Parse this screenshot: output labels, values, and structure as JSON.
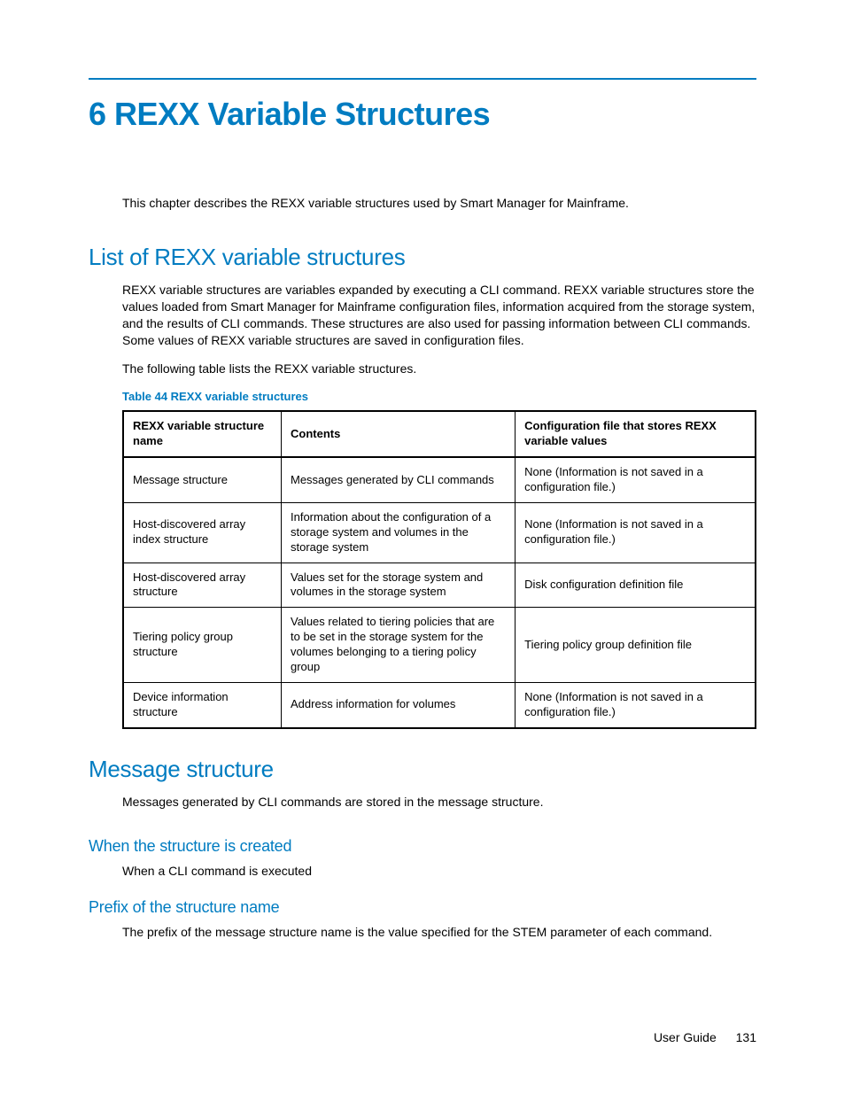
{
  "colors": {
    "accent": "#007cc1",
    "text": "#000000",
    "background": "#ffffff",
    "border": "#000000"
  },
  "chapter": {
    "title": "6 REXX Variable Structures",
    "intro": "This chapter describes the REXX variable structures used by Smart Manager for Mainframe."
  },
  "section_list": {
    "heading": "List of REXX variable structures",
    "para1": "REXX variable structures are variables expanded by executing a CLI command. REXX variable structures store the values loaded from Smart Manager for Mainframe configuration files, information acquired from the storage system, and the results of CLI commands. These structures are also used for passing information between CLI commands. Some values of REXX variable structures are saved in configuration files.",
    "para2": "The following table lists the REXX variable structures.",
    "table_caption": "Table 44 REXX variable structures",
    "table": {
      "columns": [
        "REXX variable structure name",
        "Contents",
        "Configuration file that stores REXX variable values"
      ],
      "rows": [
        [
          "Message structure",
          "Messages generated by CLI commands",
          "None (Information is not saved in a configuration file.)"
        ],
        [
          "Host-discovered array index structure",
          "Information about the configuration of a storage system and volumes in the storage system",
          "None (Information is not saved in a configuration file.)"
        ],
        [
          "Host-discovered array structure",
          "Values set for the storage system and volumes in the storage system",
          "Disk configuration definition file"
        ],
        [
          "Tiering policy group structure",
          "Values related to tiering policies that are to be set in the storage system for the volumes belonging to a tiering policy group",
          "Tiering policy group definition file"
        ],
        [
          "Device information structure",
          "Address information for volumes",
          "None (Information is not saved in a configuration file.)"
        ]
      ]
    }
  },
  "section_msg": {
    "heading": "Message structure",
    "para": "Messages generated by CLI commands are stored in the message structure.",
    "sub1": {
      "heading": "When the structure is created",
      "para": "When a CLI command is executed"
    },
    "sub2": {
      "heading": "Prefix of the structure name",
      "para": "The prefix of the message structure name is the value specified for the STEM parameter of each command."
    }
  },
  "footer": {
    "label": "User Guide",
    "page": "131"
  }
}
